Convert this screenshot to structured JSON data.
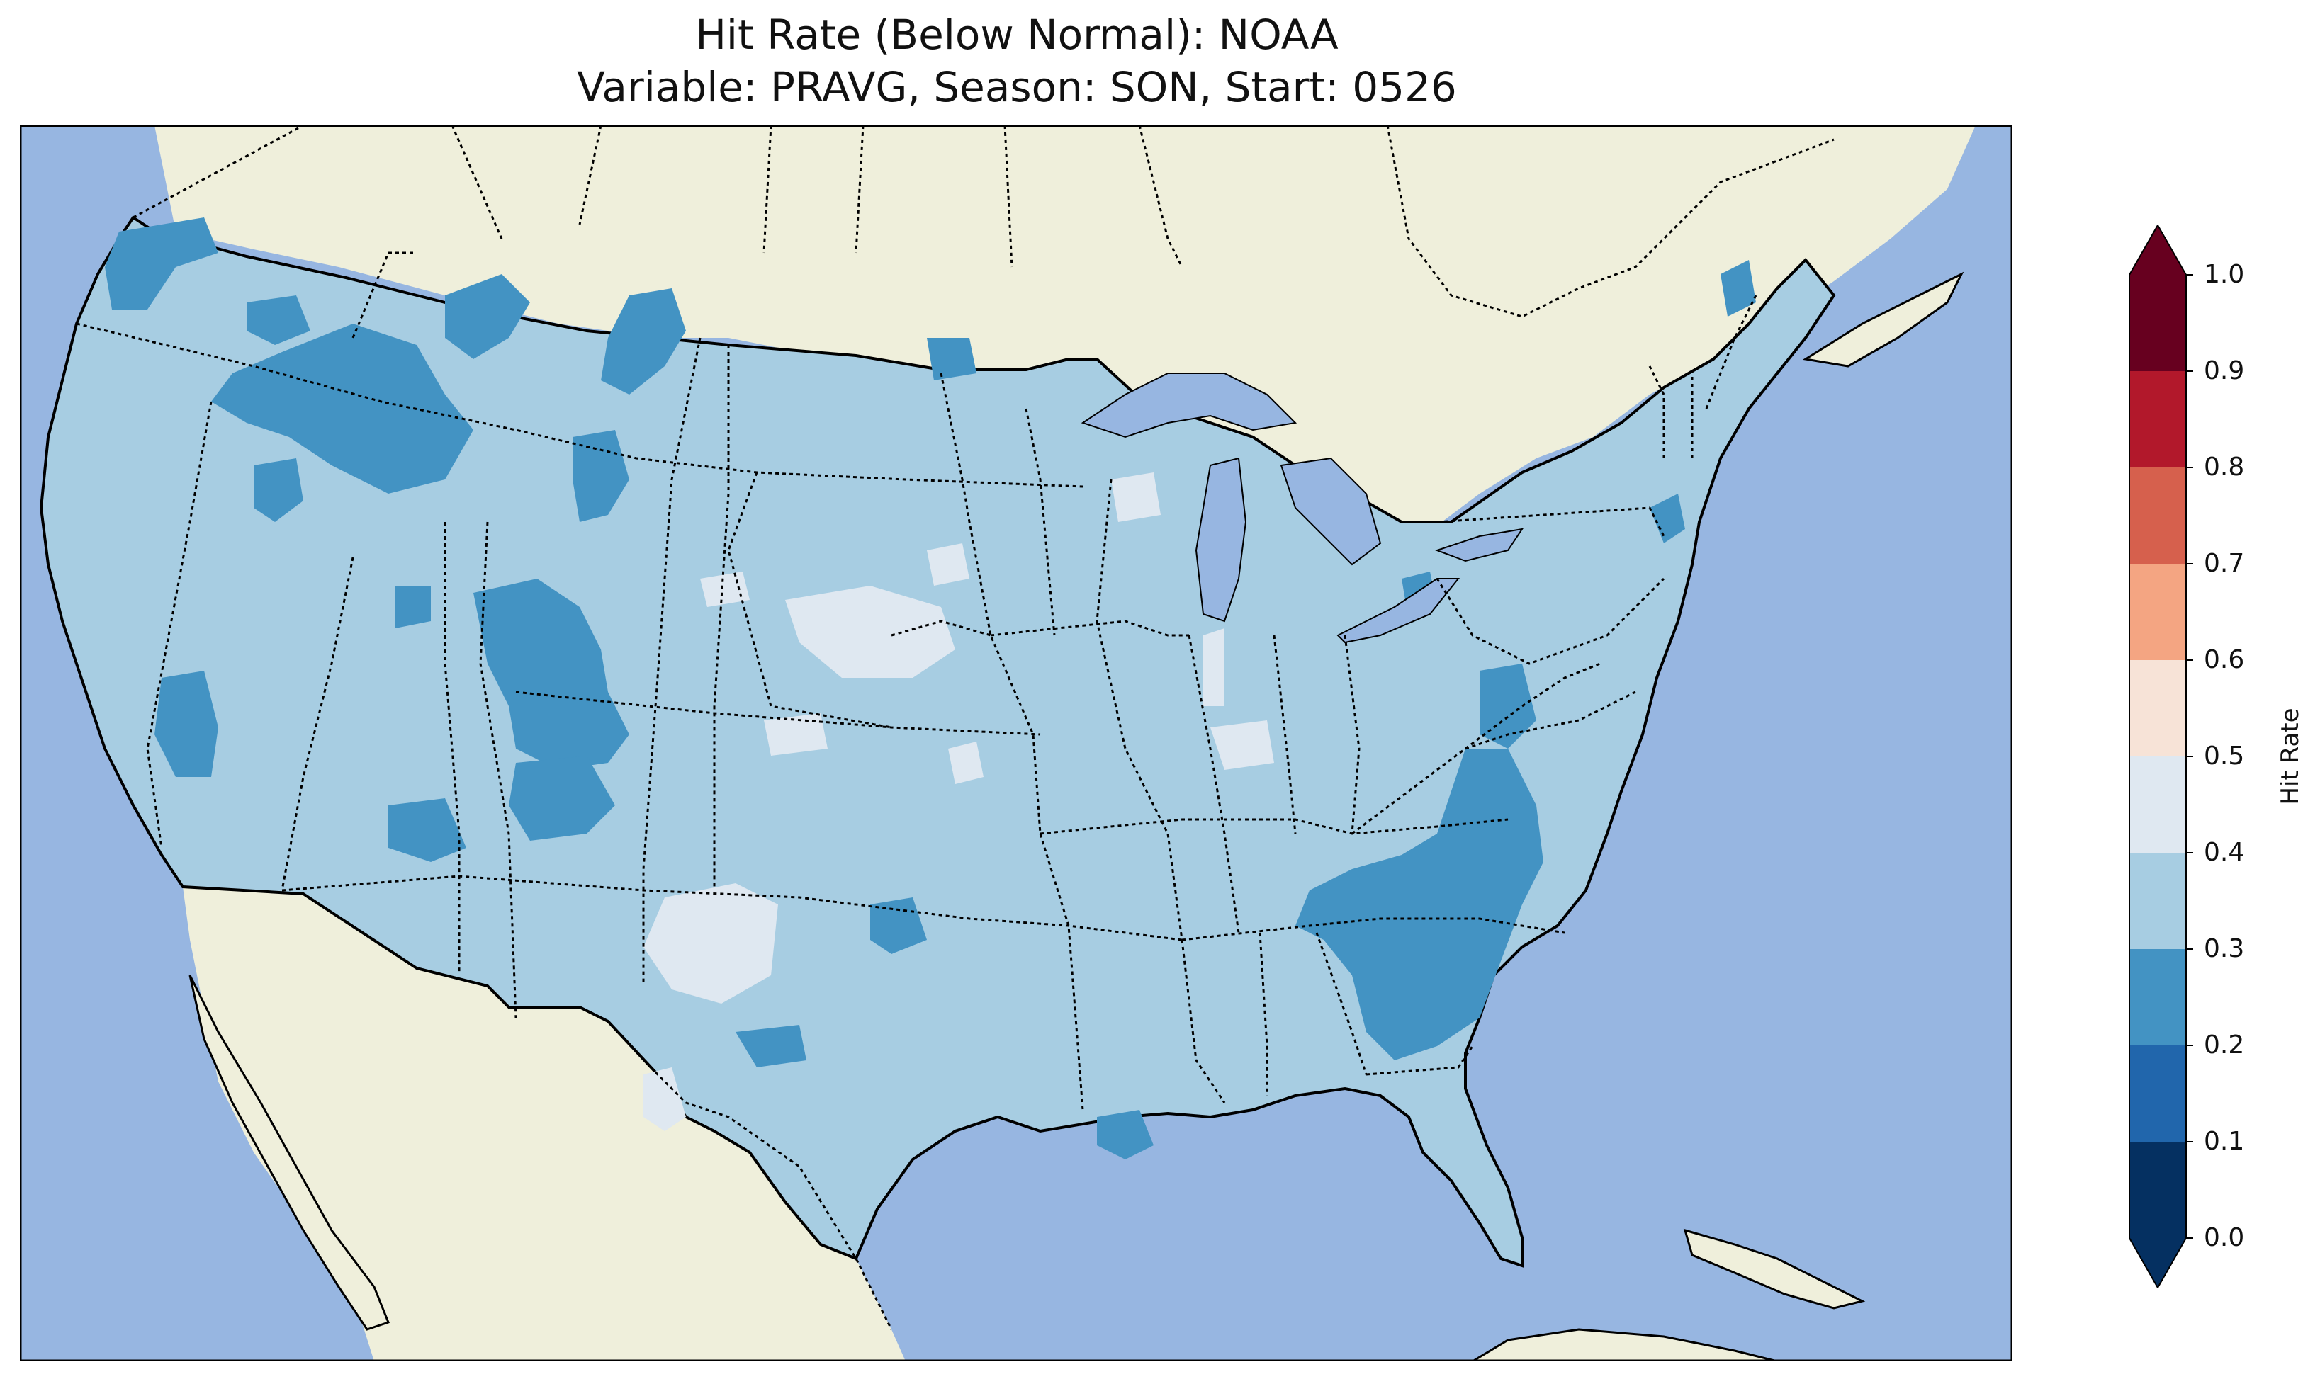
{
  "title": {
    "line1": "Hit Rate (Below Normal): NOAA",
    "line2": "Variable: PRAVG, Season: SON, Start: 0526"
  },
  "colors": {
    "ocean": "#97b6e1",
    "land": "#efefdb",
    "rate_0_1": "#053061",
    "rate_1_2": "#2166ac",
    "rate_2_3": "#4393c3",
    "rate_3_4": "#a7cde2",
    "rate_4_5": "#dfe8f1",
    "rate_5_6": "#f7e3d7",
    "rate_6_7": "#f4a582",
    "rate_7_8": "#d6604d",
    "rate_8_9": "#b2182b",
    "rate_9_10": "#67001f"
  },
  "map": {
    "region": "Contiguous United States",
    "field": "Hit Rate (Below Normal)",
    "dominant_class": "0.3–0.4",
    "features": [
      "coastlines",
      "state borders",
      "country borders",
      "lakes"
    ],
    "areas": [
      {
        "name": "Pacific Northwest / Idaho / western Montana",
        "class": "0.2–0.3"
      },
      {
        "name": "central Montana",
        "class": "0.2–0.3"
      },
      {
        "name": "Utah / western Colorado",
        "class": "0.2–0.3"
      },
      {
        "name": "northern New Mexico",
        "class": "0.2–0.3"
      },
      {
        "name": "central Arizona",
        "class": "0.2–0.3"
      },
      {
        "name": "California Central Valley",
        "class": "0.2–0.3"
      },
      {
        "name": "Virginia / North Carolina / South Carolina / Georgia",
        "class": "0.2–0.3"
      },
      {
        "name": "Nebraska / northern Kansas",
        "class": "0.4–0.5"
      },
      {
        "name": "west Texas",
        "class": "0.4–0.5"
      },
      {
        "name": "Indiana / northern Michigan",
        "class": "0.4–0.5"
      }
    ]
  },
  "colorbar": {
    "label": "Hit Rate",
    "ticks": [
      "1.0",
      "0.9",
      "0.8",
      "0.7",
      "0.6",
      "0.5",
      "0.4",
      "0.3",
      "0.2",
      "0.1",
      "0.0"
    ],
    "extend": "both"
  }
}
